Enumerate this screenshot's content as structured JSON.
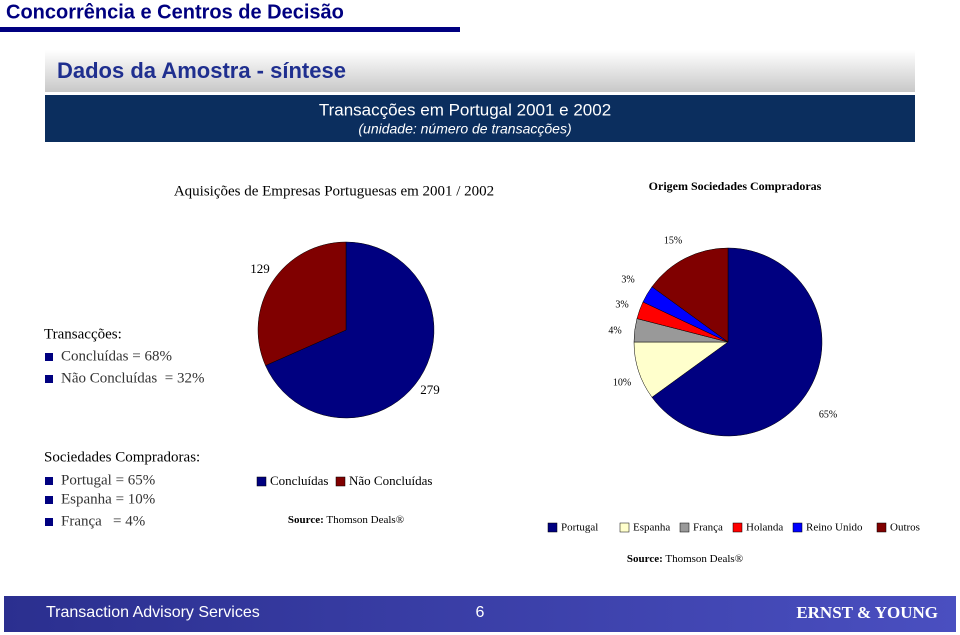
{
  "slide": {
    "header": "Concorrência e Centros de Decisão",
    "section": "Dados da Amostra - síntese",
    "banner_title": "Transacções em Portugal 2001 e 2002",
    "banner_subtitle": "(unidade: número de transacções)",
    "summary_transactions": {
      "title": "Transacções:",
      "items": [
        "Concluídas = 68%",
        "Não Concluídas  = 32%"
      ]
    },
    "summary_buyers": {
      "title": "Sociedades Compradoras:",
      "items": [
        "Portugal = 65%",
        "Espanha = 10%",
        "França   = 4%"
      ]
    },
    "footer": {
      "left": "Transaction Advisory Services",
      "page": "6",
      "logo": "ERNST & YOUNG"
    }
  },
  "chart_data": [
    {
      "type": "pie",
      "title": "Aquisições de Empresas Portuguesas em 2001 / 2002",
      "categories": [
        "Concluídas",
        "Não Concluídas"
      ],
      "values": [
        279,
        129
      ],
      "colors": [
        "#000080",
        "#800000"
      ],
      "source_label": "Source:",
      "source": "Thomson Deals®"
    },
    {
      "type": "pie",
      "title": "Origem Sociedades Compradoras",
      "categories": [
        "Portugal",
        "Espanha",
        "França",
        "Holanda",
        "Reino Unido",
        "Outros"
      ],
      "values": [
        65,
        10,
        4,
        3,
        3,
        15
      ],
      "value_labels": [
        "65%",
        "10%",
        "4%",
        "3%",
        "3%",
        "15%"
      ],
      "colors": [
        "#000080",
        "#ffffcc",
        "#999999",
        "#ff0000",
        "#0000ff",
        "#800000"
      ],
      "source_label": "Source:",
      "source": "Thomson Deals®"
    }
  ]
}
